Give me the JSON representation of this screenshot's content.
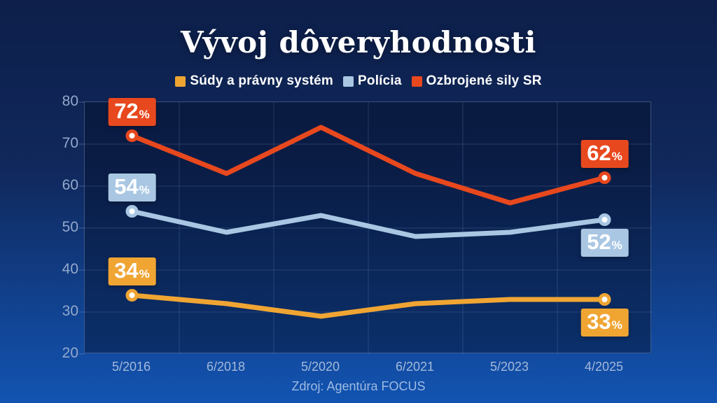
{
  "title": "Vývoj dôveryhodnosti",
  "source": "Zdroj: Agentúra FOCUS",
  "colors": {
    "background_top": "#0d1f4a",
    "background_bottom": "#1254b2",
    "grid": "rgba(138,170,220,0.22)",
    "axis_text": "#93a9cc"
  },
  "chart_data": {
    "type": "line",
    "title": "Vývoj dôveryhodnosti",
    "categories": [
      "5/2016",
      "6/2018",
      "5/2020",
      "6/2021",
      "5/2023",
      "4/2025"
    ],
    "series": [
      {
        "name": "Súdy a právny systém",
        "color": "#F0A533",
        "values": [
          34,
          32,
          29,
          32,
          33,
          33
        ],
        "first_label": "34%",
        "last_label": "33%",
        "first_label_pos": "above",
        "last_label_pos": "below"
      },
      {
        "name": "Polícia",
        "color": "#A9C7E3",
        "values": [
          54,
          49,
          53,
          48,
          49,
          52
        ],
        "first_label": "54%",
        "last_label": "52%",
        "first_label_pos": "above",
        "last_label_pos": "below"
      },
      {
        "name": "Ozbrojené sily SR",
        "color": "#E8481E",
        "values": [
          72,
          63,
          74,
          63,
          56,
          62
        ],
        "first_label": "72%",
        "last_label": "62%",
        "first_label_pos": "above",
        "last_label_pos": "above"
      }
    ],
    "ylim": [
      20,
      80
    ],
    "yticks": [
      20,
      30,
      40,
      50,
      60,
      70,
      80
    ],
    "grid": true,
    "legend_position": "top",
    "markers": "endpoints-only"
  }
}
